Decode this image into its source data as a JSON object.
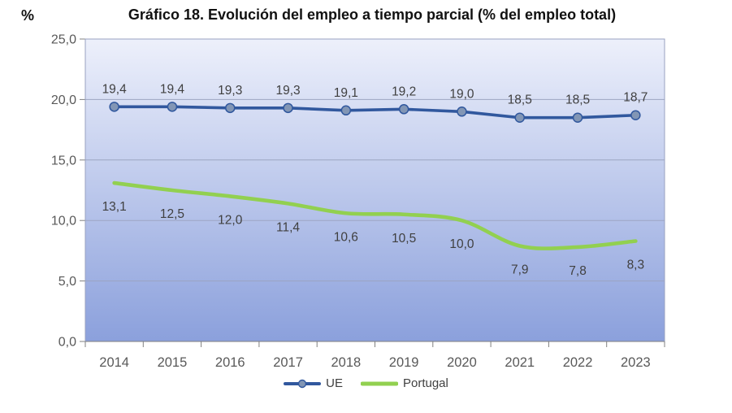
{
  "title": "Gráfico 18. Evolución del empleo a tiempo parcial (% del empleo total)",
  "y_axis_unit": "%",
  "chart_data": {
    "type": "line",
    "categories": [
      "2014",
      "2015",
      "2016",
      "2017",
      "2018",
      "2019",
      "2020",
      "2021",
      "2022",
      "2023"
    ],
    "series": [
      {
        "name": "UE",
        "values": [
          19.4,
          19.4,
          19.3,
          19.3,
          19.1,
          19.2,
          19.0,
          18.5,
          18.5,
          18.7
        ],
        "labels": [
          "19,4",
          "19,4",
          "19,3",
          "19,3",
          "19,1",
          "19,2",
          "19,0",
          "18,5",
          "18,5",
          "18,7"
        ],
        "color": "#31589E",
        "marker": true,
        "marker_fill": "#8296B5",
        "line_width": 3.6,
        "smooth": false,
        "label_side": "above"
      },
      {
        "name": "Portugal",
        "values": [
          13.1,
          12.5,
          12.0,
          11.4,
          10.6,
          10.5,
          10.0,
          7.9,
          7.8,
          8.3
        ],
        "labels": [
          "13,1",
          "12,5",
          "12,0",
          "11,4",
          "10,6",
          "10,5",
          "10,0",
          "7,9",
          "7,8",
          "8,3"
        ],
        "color": "#92D050",
        "marker": false,
        "marker_fill": "",
        "line_width": 4.6,
        "smooth": true,
        "label_side": "below"
      }
    ],
    "ylim": [
      0,
      25
    ],
    "ytick_step": 5,
    "ytick_labels": [
      "0,0",
      "5,0",
      "10,0",
      "15,0",
      "20,0",
      "25,0"
    ],
    "grid": true,
    "legend_position": "bottom"
  },
  "colors": {
    "plot_bg_top": "#EDF0FB",
    "plot_bg_bottom": "#8BA0DC",
    "gridline": "#9CA5C2",
    "plot_border": "#99A2C0",
    "axis": "#808080",
    "tick_label": "#595959",
    "data_label": "#404040",
    "title_text": "#111111"
  }
}
